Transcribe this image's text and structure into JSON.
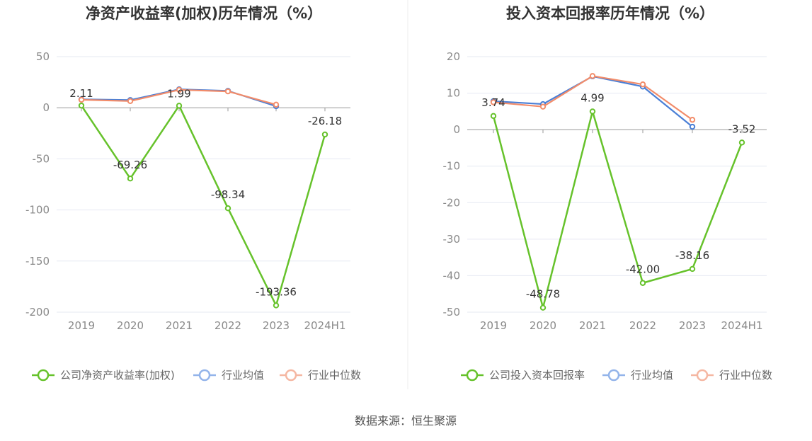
{
  "colors": {
    "company": "#66c22b",
    "avg": "#4a7fd6",
    "median": "#f28c6a",
    "legend_avg": "#93b4ea",
    "legend_median": "#f5b7a2",
    "grid": "#e6e9f2",
    "axis": "#999999",
    "divider": "#eeeeee"
  },
  "chart_data": [
    {
      "type": "line",
      "title": "净资产收益率(加权)历年情况（%）",
      "categories": [
        "2019",
        "2020",
        "2021",
        "2022",
        "2023",
        "2024H1"
      ],
      "ylim": [
        -200,
        50
      ],
      "yticks": [
        50,
        0,
        -50,
        -100,
        -150,
        -200
      ],
      "series": [
        {
          "key": "company",
          "name": "公司净资产收益率(加权)",
          "values": [
            2.11,
            -69.26,
            1.99,
            -98.34,
            -193.36,
            -26.18
          ],
          "labels": [
            "2.11",
            "-69.26",
            "1.99",
            "-98.34",
            "-193.36",
            "-26.18"
          ]
        },
        {
          "key": "avg",
          "name": "行业均值",
          "values": [
            8.2,
            7.5,
            18.0,
            16.5,
            1.5,
            null
          ]
        },
        {
          "key": "median",
          "name": "行业中位数",
          "values": [
            7.8,
            6.5,
            17.5,
            16.0,
            3.0,
            null
          ]
        }
      ]
    },
    {
      "type": "line",
      "title": "投入资本回报率历年情况（%）",
      "categories": [
        "2019",
        "2020",
        "2021",
        "2022",
        "2023",
        "2024H1"
      ],
      "ylim": [
        -50,
        20
      ],
      "yticks": [
        20,
        10,
        0,
        -10,
        -20,
        -30,
        -40,
        -50
      ],
      "series": [
        {
          "key": "company",
          "name": "公司投入资本回报率",
          "values": [
            3.74,
            -48.78,
            4.99,
            -42.0,
            -38.16,
            -3.52
          ],
          "labels": [
            "3.74",
            "-48.78",
            "4.99",
            "-42.00",
            "-38.16",
            "-3.52"
          ]
        },
        {
          "key": "avg",
          "name": "行业均值",
          "values": [
            7.8,
            7.0,
            14.6,
            11.8,
            0.8,
            null
          ]
        },
        {
          "key": "median",
          "name": "行业中位数",
          "values": [
            7.5,
            6.3,
            14.7,
            12.4,
            2.7,
            null
          ]
        }
      ]
    }
  ],
  "source": "数据来源：恒生聚源"
}
